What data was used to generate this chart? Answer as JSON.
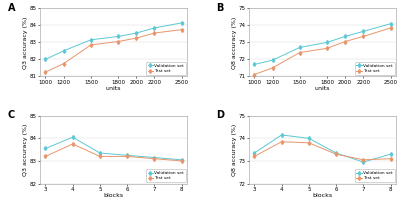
{
  "A": {
    "xlabel": "units",
    "ylabel": "Q3 accuracy (%)",
    "x": [
      1000,
      1200,
      1500,
      1800,
      2000,
      2200,
      2500
    ],
    "val": [
      82.0,
      82.5,
      83.15,
      83.35,
      83.55,
      83.85,
      84.15
    ],
    "test": [
      81.25,
      81.75,
      82.85,
      83.05,
      83.25,
      83.55,
      83.75
    ],
    "ylim": [
      81,
      85
    ],
    "yticks": [
      81,
      82,
      83,
      84,
      85
    ],
    "label": "A"
  },
  "B": {
    "xlabel": "units",
    "ylabel": "Q8 accuracy (%)",
    "x": [
      1000,
      1200,
      1500,
      1800,
      2000,
      2200,
      2500
    ],
    "val": [
      71.7,
      71.95,
      72.7,
      73.0,
      73.35,
      73.65,
      74.1
    ],
    "test": [
      71.1,
      71.5,
      72.4,
      72.65,
      73.05,
      73.35,
      73.85
    ],
    "ylim": [
      71,
      75
    ],
    "yticks": [
      71,
      72,
      73,
      74,
      75
    ],
    "label": "B"
  },
  "C": {
    "xlabel": "blocks",
    "ylabel": "Q3 accuracy (%)",
    "x": [
      3,
      4,
      5,
      6,
      7,
      8
    ],
    "val": [
      83.55,
      84.05,
      83.35,
      83.25,
      83.15,
      83.05
    ],
    "test": [
      83.2,
      83.75,
      83.2,
      83.2,
      83.1,
      83.0
    ],
    "ylim": [
      82,
      85
    ],
    "yticks": [
      82,
      83,
      84,
      85
    ],
    "label": "C"
  },
  "D": {
    "xlabel": "blocks",
    "ylabel": "Q8 accuracy (%)",
    "x": [
      3,
      4,
      5,
      6,
      7,
      8
    ],
    "val": [
      73.35,
      74.15,
      74.0,
      73.35,
      72.95,
      73.3
    ],
    "test": [
      73.2,
      73.85,
      73.8,
      73.3,
      73.05,
      73.1
    ],
    "ylim": [
      72,
      75
    ],
    "yticks": [
      72,
      73,
      74,
      75
    ],
    "label": "D"
  },
  "val_color": "#5BC8D4",
  "test_color": "#E8956A",
  "val_label": "Validation set",
  "test_label": "Test set",
  "bg_color": "#FFFFFF",
  "fontsize_axis": 4.5,
  "fontsize_tick": 4.0,
  "marker": "d",
  "markersize": 2.0,
  "linewidth": 0.7
}
